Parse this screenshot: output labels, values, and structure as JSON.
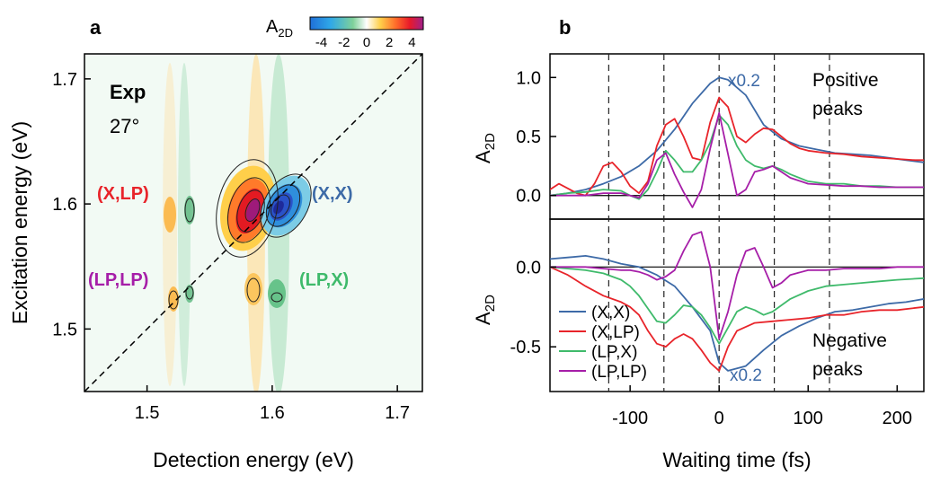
{
  "figure": {
    "panel_a_letter": "a",
    "panel_b_letter": "b"
  },
  "colors": {
    "x_x": "#3d6aa7",
    "x_lp": "#e8242a",
    "lp_x": "#3fba6b",
    "lp_lp": "#a61ea8",
    "neg_fill": "#2f6cd8",
    "pos_fill": "#e8272a"
  },
  "chart_data": [
    {
      "type": "heatmap",
      "panel": "a",
      "xlabel": "Detection energy (eV)",
      "ylabel": "Excitation energy (eV)",
      "xlim": [
        1.45,
        1.72
      ],
      "ylim": [
        1.45,
        1.72
      ],
      "xticks": [
        "1.5",
        "1.6",
        "1.7"
      ],
      "yticks": [
        "1.5",
        "1.6",
        "1.7"
      ],
      "xtick_values": [
        1.5,
        1.6,
        1.7
      ],
      "ytick_values": [
        1.5,
        1.6,
        1.7
      ],
      "colorbar": {
        "label": "A",
        "label_sub": "2D",
        "range": [
          -5,
          5
        ],
        "ticks": [
          "-4",
          "-2",
          "0",
          "2",
          "4"
        ],
        "tick_values": [
          -4,
          -2,
          0,
          2,
          4
        ]
      },
      "annotations": {
        "exp": "Exp",
        "angle": "27°",
        "x_lp": "(X,LP)",
        "x_x": "(X,X)",
        "lp_lp": "(LP,LP)",
        "lp_x": "(LP,X)"
      },
      "diagonal": true,
      "features": [
        {
          "label": "(X,X) negative peak",
          "x": 1.605,
          "y": 1.597,
          "value": -5.0
        },
        {
          "label": "(X,LP) positive peak",
          "x": 1.584,
          "y": 1.596,
          "value": 5.0
        },
        {
          "label": "(LP,LP)",
          "x": 1.522,
          "y": 1.522,
          "value": 1.0
        },
        {
          "label": "(LP,X)",
          "x": 1.605,
          "y": 1.525,
          "value": -1.0
        }
      ]
    },
    {
      "type": "line",
      "panel": "b",
      "xlabel": "Waiting time (fs)",
      "ylabel": "A",
      "ylabel_sub": "2D",
      "xlim": [
        -190,
        230
      ],
      "xticks": [
        "-100",
        "0",
        "100",
        "200"
      ],
      "xtick_values": [
        -100,
        0,
        100,
        200
      ],
      "dashed_times": [
        -124,
        -62,
        0,
        62,
        124
      ],
      "top": {
        "ylim": [
          -0.2,
          1.2
        ],
        "yticks": [
          "0.0",
          "0.5",
          "1.0"
        ],
        "ytick_values": [
          0,
          0.5,
          1.0
        ],
        "label_line1": "Positive",
        "label_line2": "peaks",
        "scale_note": "x0.2",
        "series": [
          {
            "key": "x_x",
            "x": [
              -190,
              -170,
              -150,
              -130,
              -110,
              -90,
              -70,
              -50,
              -30,
              -10,
              0,
              10,
              30,
              50,
              70,
              90,
              110,
              130,
              150,
              170,
              190,
              210,
              230
            ],
            "values": [
              0.0,
              0.02,
              0.05,
              0.1,
              0.16,
              0.25,
              0.38,
              0.56,
              0.78,
              0.95,
              1.0,
              0.98,
              0.85,
              0.6,
              0.48,
              0.42,
              0.39,
              0.36,
              0.35,
              0.34,
              0.32,
              0.3,
              0.28
            ]
          },
          {
            "key": "x_lp",
            "x": [
              -190,
              -180,
              -170,
              -160,
              -150,
              -140,
              -130,
              -120,
              -110,
              -100,
              -90,
              -80,
              -70,
              -60,
              -50,
              -40,
              -30,
              -20,
              -10,
              0,
              10,
              20,
              30,
              40,
              50,
              60,
              70,
              80,
              90,
              100,
              120,
              140,
              160,
              180,
              200,
              220,
              230
            ],
            "values": [
              0.05,
              0.1,
              0.06,
              0.02,
              0.0,
              0.1,
              0.25,
              0.28,
              0.2,
              0.08,
              0.02,
              0.12,
              0.42,
              0.6,
              0.65,
              0.5,
              0.32,
              0.3,
              0.62,
              0.83,
              0.75,
              0.5,
              0.45,
              0.52,
              0.57,
              0.56,
              0.5,
              0.44,
              0.4,
              0.38,
              0.36,
              0.35,
              0.33,
              0.32,
              0.31,
              0.3,
              0.3
            ]
          },
          {
            "key": "lp_x",
            "x": [
              -190,
              -170,
              -150,
              -130,
              -110,
              -100,
              -90,
              -80,
              -70,
              -60,
              -50,
              -40,
              -30,
              -20,
              -10,
              0,
              10,
              20,
              30,
              40,
              50,
              60,
              70,
              80,
              100,
              120,
              140,
              160,
              180,
              200,
              230
            ],
            "values": [
              0.0,
              0.02,
              0.03,
              0.05,
              0.04,
              0.0,
              -0.03,
              0.05,
              0.2,
              0.38,
              0.3,
              0.2,
              0.2,
              0.3,
              0.45,
              0.68,
              0.6,
              0.42,
              0.3,
              0.25,
              0.23,
              0.25,
              0.22,
              0.18,
              0.12,
              0.1,
              0.1,
              0.08,
              0.08,
              0.07,
              0.07
            ]
          },
          {
            "key": "lp_lp",
            "x": [
              -190,
              -170,
              -150,
              -130,
              -110,
              -100,
              -90,
              -80,
              -70,
              -60,
              -50,
              -40,
              -30,
              -20,
              -10,
              0,
              10,
              20,
              30,
              40,
              50,
              60,
              70,
              80,
              100,
              120,
              140,
              160,
              180,
              200,
              230
            ],
            "values": [
              0.0,
              0.0,
              0.0,
              0.02,
              0.02,
              0.0,
              -0.02,
              0.1,
              0.3,
              0.36,
              0.18,
              0.03,
              -0.1,
              0.05,
              0.4,
              0.7,
              0.35,
              0.0,
              0.05,
              0.2,
              0.22,
              0.25,
              0.2,
              0.15,
              0.1,
              0.09,
              0.08,
              0.08,
              0.07,
              0.07,
              0.07
            ]
          }
        ]
      },
      "bottom": {
        "ylim": [
          -0.78,
          0.3
        ],
        "yticks": [
          "0.0",
          "-0.5"
        ],
        "ytick_values": [
          0,
          -0.5
        ],
        "label_line1": "Negative",
        "label_line2": "peaks",
        "scale_note": "x0.2",
        "series": [
          {
            "key": "x_x",
            "x": [
              -190,
              -170,
              -150,
              -130,
              -110,
              -90,
              -70,
              -50,
              -30,
              -10,
              0,
              10,
              30,
              50,
              70,
              90,
              110,
              130,
              150,
              170,
              190,
              210,
              230
            ],
            "values": [
              0.05,
              0.06,
              0.07,
              0.05,
              0.02,
              0.0,
              -0.05,
              -0.12,
              -0.25,
              -0.4,
              -0.6,
              -0.65,
              -0.62,
              -0.52,
              -0.43,
              -0.37,
              -0.32,
              -0.28,
              -0.27,
              -0.25,
              -0.23,
              -0.22,
              -0.2
            ]
          },
          {
            "key": "x_lp",
            "x": [
              -190,
              -170,
              -150,
              -130,
              -110,
              -100,
              -90,
              -80,
              -70,
              -60,
              -50,
              -40,
              -30,
              -20,
              -10,
              0,
              10,
              20,
              40,
              60,
              80,
              100,
              120,
              140,
              160,
              180,
              200,
              230
            ],
            "values": [
              0.0,
              -0.05,
              -0.12,
              -0.18,
              -0.22,
              -0.25,
              -0.3,
              -0.4,
              -0.48,
              -0.5,
              -0.45,
              -0.42,
              -0.45,
              -0.52,
              -0.6,
              -0.65,
              -0.5,
              -0.4,
              -0.35,
              -0.34,
              -0.33,
              -0.32,
              -0.3,
              -0.3,
              -0.28,
              -0.27,
              -0.27,
              -0.25
            ]
          },
          {
            "key": "lp_x",
            "x": [
              -190,
              -170,
              -150,
              -130,
              -110,
              -100,
              -90,
              -80,
              -70,
              -60,
              -50,
              -40,
              -30,
              -20,
              -10,
              0,
              10,
              20,
              30,
              40,
              50,
              60,
              70,
              80,
              100,
              120,
              140,
              160,
              180,
              200,
              230
            ],
            "values": [
              0.0,
              -0.01,
              -0.02,
              -0.04,
              -0.08,
              -0.12,
              -0.18,
              -0.26,
              -0.34,
              -0.35,
              -0.3,
              -0.24,
              -0.25,
              -0.3,
              -0.38,
              -0.48,
              -0.38,
              -0.28,
              -0.25,
              -0.27,
              -0.3,
              -0.28,
              -0.24,
              -0.2,
              -0.15,
              -0.12,
              -0.11,
              -0.1,
              -0.09,
              -0.08,
              -0.07
            ]
          },
          {
            "key": "lp_lp",
            "x": [
              -190,
              -170,
              -150,
              -130,
              -110,
              -100,
              -90,
              -80,
              -70,
              -60,
              -50,
              -40,
              -30,
              -20,
              -10,
              0,
              10,
              20,
              30,
              40,
              50,
              60,
              70,
              80,
              100,
              120,
              140,
              160,
              180,
              200,
              230
            ],
            "values": [
              0.0,
              0.0,
              0.0,
              -0.01,
              -0.02,
              -0.02,
              -0.03,
              -0.05,
              -0.08,
              -0.06,
              -0.02,
              0.1,
              0.2,
              0.22,
              0.0,
              -0.45,
              -0.28,
              -0.05,
              0.1,
              0.12,
              0.0,
              -0.13,
              -0.1,
              -0.05,
              -0.02,
              -0.02,
              -0.01,
              -0.01,
              -0.01,
              0.0,
              0.0
            ]
          }
        ]
      },
      "legend": [
        {
          "key": "x_x",
          "label": "(X,X)"
        },
        {
          "key": "x_lp",
          "label": "(X,LP)"
        },
        {
          "key": "lp_x",
          "label": "(LP,X)"
        },
        {
          "key": "lp_lp",
          "label": "(LP,LP)"
        }
      ]
    }
  ]
}
